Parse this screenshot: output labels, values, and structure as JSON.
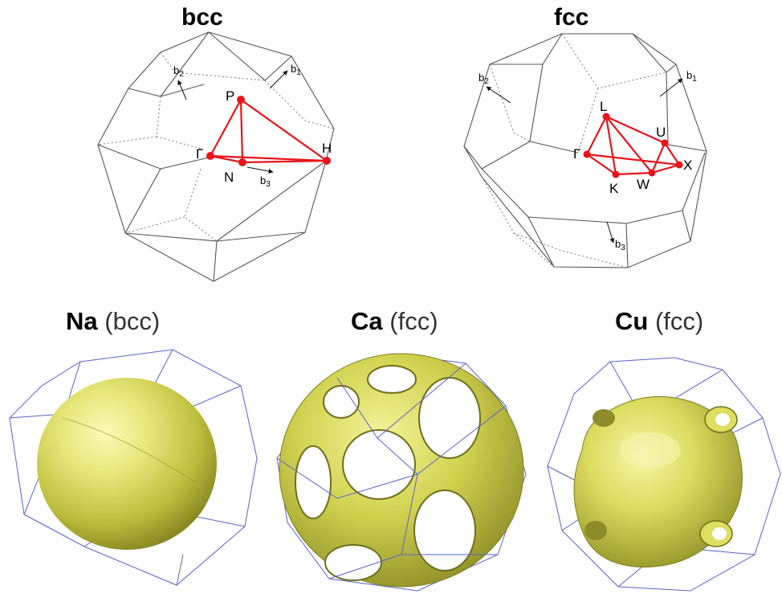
{
  "bcc": {
    "title": "bcc",
    "points": {
      "P": "P",
      "Gamma": "Γ",
      "N": "N",
      "H": "H"
    },
    "vectors": {
      "b1": "b",
      "b1_sub": "1",
      "b2": "b",
      "b2_sub": "2",
      "b3": "b",
      "b3_sub": "3"
    }
  },
  "fcc": {
    "title": "fcc",
    "points": {
      "L": "L",
      "U": "U",
      "Gamma": "Γ",
      "X": "X",
      "K": "K",
      "W": "W"
    },
    "vectors": {
      "b1": "b",
      "b1_sub": "1",
      "b2": "b",
      "b2_sub": "2",
      "b3": "b",
      "b3_sub": "3"
    }
  },
  "fermi": [
    {
      "element": "Na",
      "lattice": "(bcc)"
    },
    {
      "element": "Ca",
      "lattice": "(fcc)"
    },
    {
      "element": "Cu",
      "lattice": "(fcc)"
    }
  ],
  "colors": {
    "path": "#e8141b",
    "surface": "#d6d65a",
    "frame": "#5a63c7"
  }
}
